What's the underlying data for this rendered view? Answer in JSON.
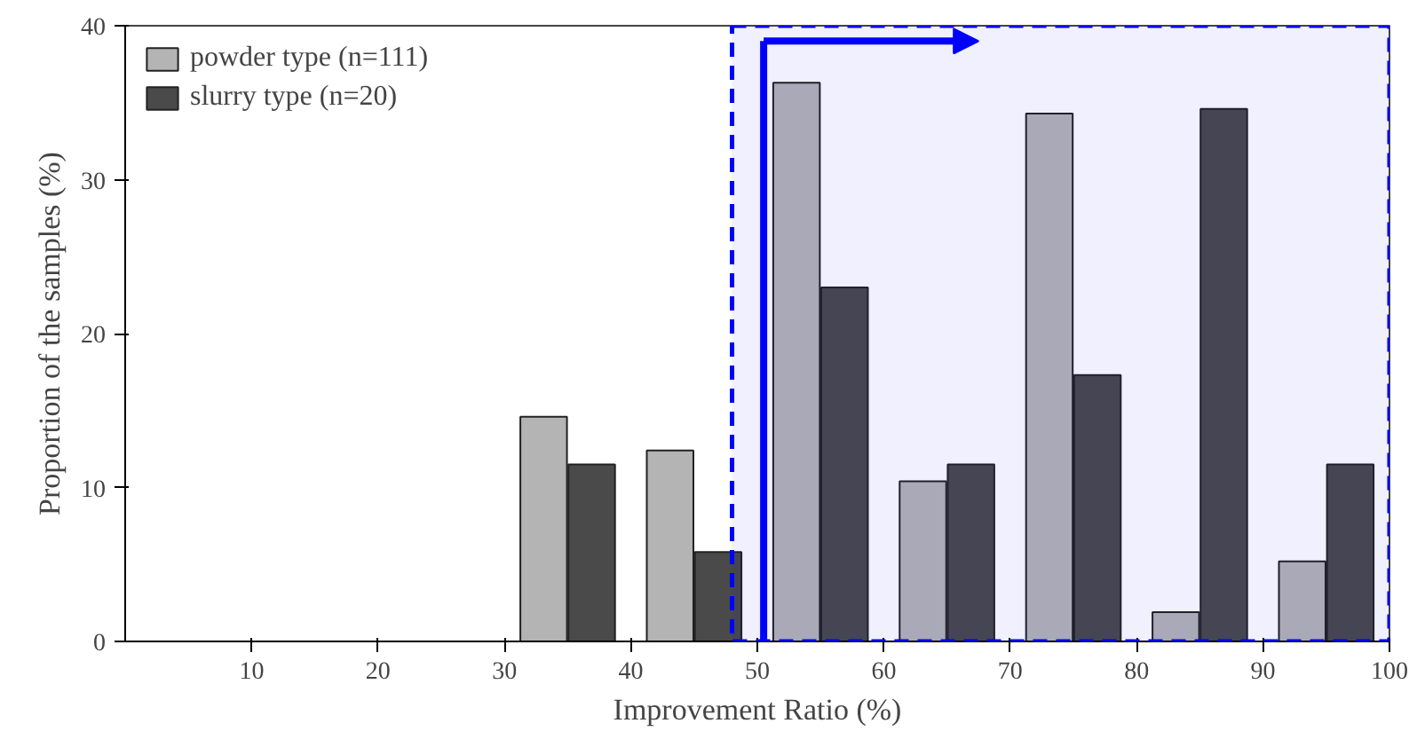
{
  "chart_data": {
    "type": "bar",
    "xlabel": "Improvement Ratio (%)",
    "ylabel": "Proportion of the samples (%)",
    "x": [
      35,
      45,
      55,
      65,
      75,
      85,
      95
    ],
    "series": [
      {
        "name": "powder type (n=111)",
        "color": "#b4b4b4",
        "values": [
          14.6,
          12.4,
          36.3,
          10.4,
          34.3,
          1.9,
          5.2
        ]
      },
      {
        "name": "slurry type (n=20)",
        "color": "#4a4a4a",
        "values": [
          11.5,
          5.8,
          23.0,
          11.5,
          17.3,
          34.6,
          11.5
        ]
      }
    ],
    "xlim": [
      0,
      100
    ],
    "xticks": [
      10,
      20,
      30,
      40,
      50,
      60,
      70,
      80,
      90,
      100
    ],
    "ylim": [
      0,
      40
    ],
    "yticks": [
      0,
      10,
      20,
      30,
      40
    ],
    "bands": [
      {
        "axis": "x",
        "from": 48,
        "to": 100,
        "color": "#0000ff"
      }
    ],
    "ref_lines": [
      {
        "axis": "x",
        "value": 50.5,
        "color": "#0000ff"
      }
    ],
    "grid": false,
    "legend": "top left"
  }
}
